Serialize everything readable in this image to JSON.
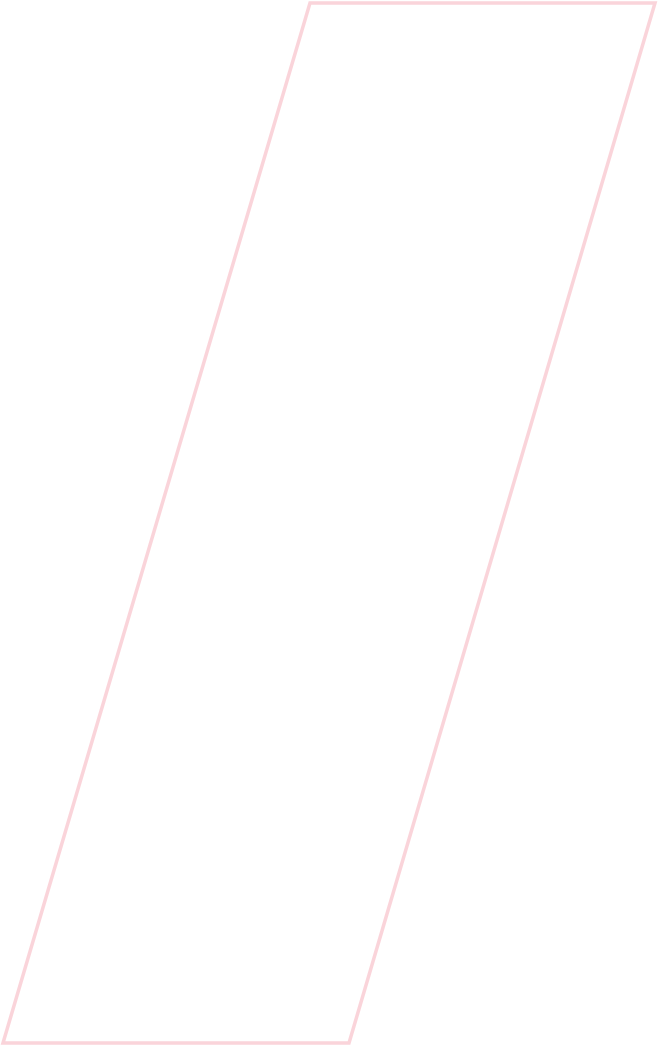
{
  "shape": {
    "stroke_color": "#fad4da",
    "fill": "none"
  }
}
